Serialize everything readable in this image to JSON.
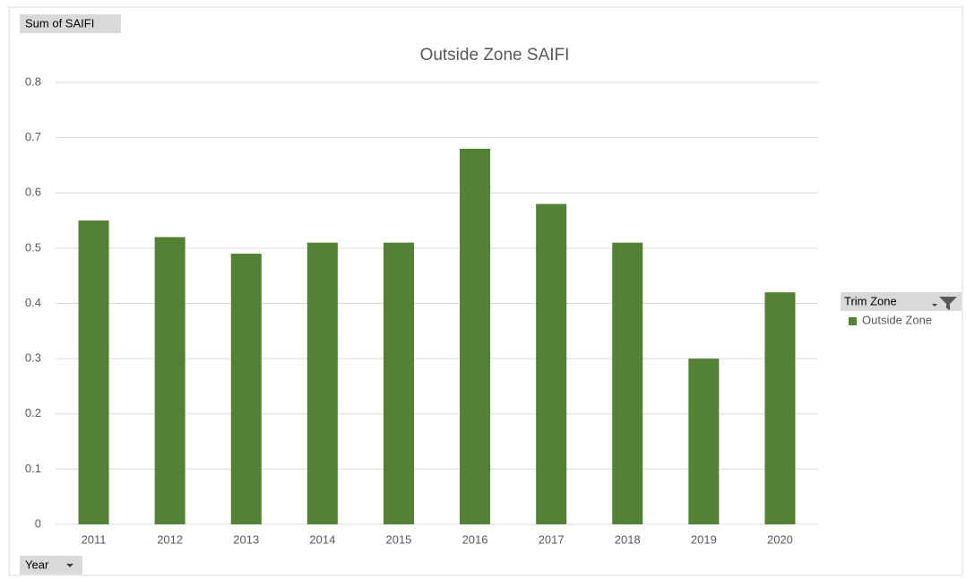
{
  "chart_data": {
    "type": "bar",
    "title": "Outside Zone SAIFI",
    "value_field": "Sum of SAIFI",
    "axis_field": "Year",
    "legend_title": "Trim Zone",
    "categories": [
      "2011",
      "2012",
      "2013",
      "2014",
      "2015",
      "2016",
      "2017",
      "2018",
      "2019",
      "2020"
    ],
    "series": [
      {
        "name": "Outside Zone",
        "color": "#548235",
        "values": [
          0.55,
          0.52,
          0.49,
          0.51,
          0.51,
          0.68,
          0.58,
          0.51,
          0.3,
          0.42
        ]
      }
    ],
    "ylim": [
      0,
      0.8
    ],
    "yticks": [
      0,
      0.1,
      0.2,
      0.3,
      0.4,
      0.5,
      0.6,
      0.7,
      0.8
    ],
    "grid": true,
    "legend": "right"
  }
}
